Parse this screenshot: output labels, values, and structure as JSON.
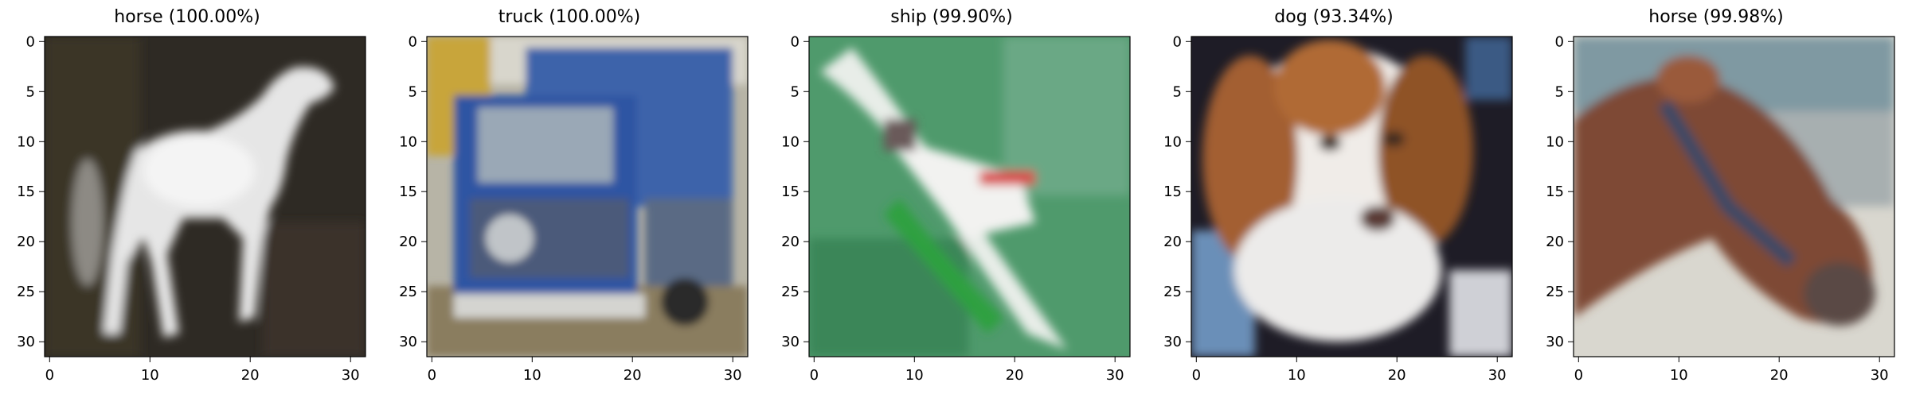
{
  "panels": [
    {
      "title": "horse (100.00%)",
      "label": "horse",
      "confidence_percent": 100.0,
      "scene": "white horse standing on dark background"
    },
    {
      "title": "truck (100.00%)",
      "label": "truck",
      "confidence_percent": 100.0,
      "scene": "blue truck front view"
    },
    {
      "title": "ship (99.90%)",
      "label": "ship",
      "confidence_percent": 99.9,
      "scene": "white ship on green water, diagonal"
    },
    {
      "title": "dog (93.34%)",
      "label": "dog",
      "confidence_percent": 93.34,
      "scene": "brown and white dog face close-up"
    },
    {
      "title": "horse (99.98%)",
      "label": "horse",
      "confidence_percent": 99.98,
      "scene": "brown horse head with bridle, pale background"
    }
  ],
  "axis": {
    "x_ticks": [
      "0",
      "10",
      "20",
      "30"
    ],
    "y_ticks": [
      "0",
      "5",
      "10",
      "15",
      "20",
      "25",
      "30"
    ]
  },
  "colors": {
    "panel1_bg": "#2e2a24",
    "panel1_subject": "#e4e4e4",
    "panel2_bg": "#a8a595",
    "panel2_subject": "#2f5aa3",
    "panel3_bg": "#3f8d5f",
    "panel3_subject": "#e8ece6",
    "panel4_bg": "#1c1a24",
    "panel4_subject": "#9a5a2e",
    "panel5_bg": "#d9d7cf",
    "panel5_subject": "#7a4a34"
  }
}
